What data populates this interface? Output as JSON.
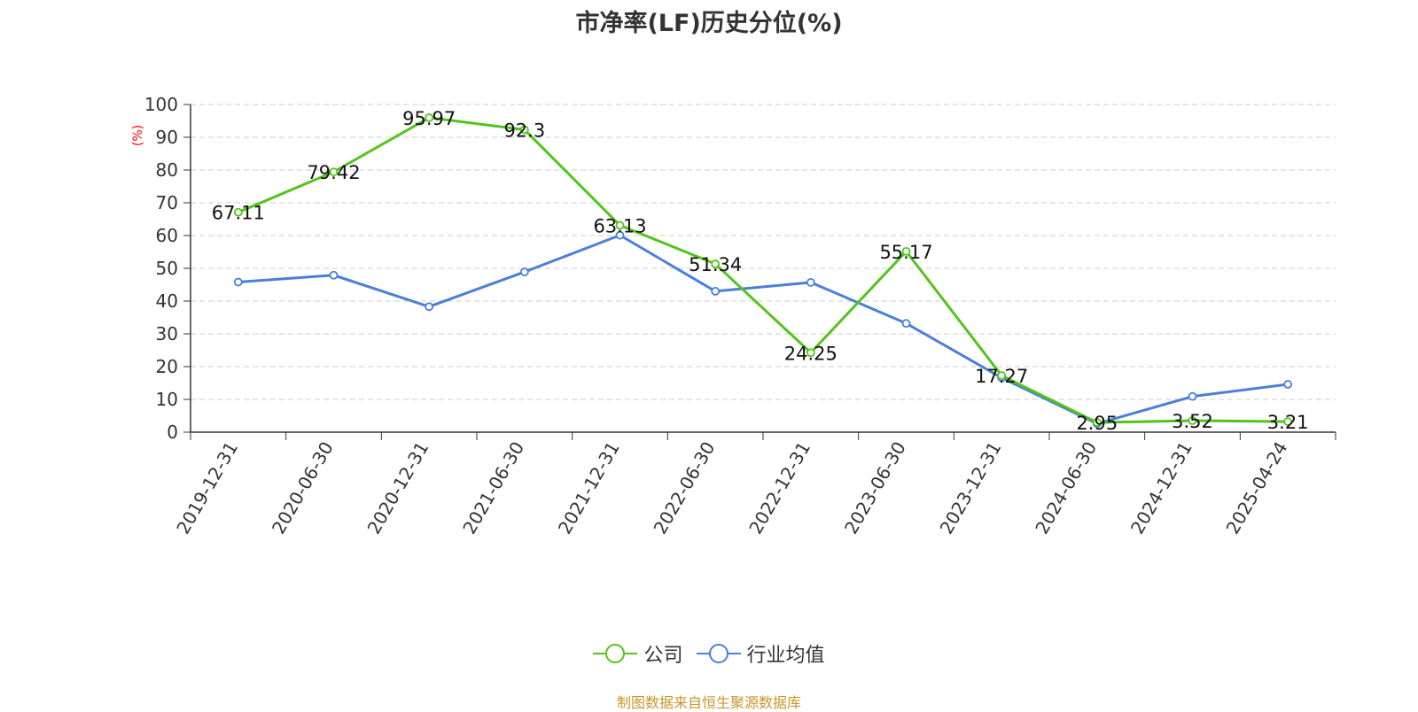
{
  "chart_data": {
    "type": "line",
    "title": "市净率(LF)历史分位(%)",
    "ylabel": "(%)",
    "xlabel": "",
    "ylim": [
      0,
      100
    ],
    "yticks": [
      0,
      10,
      20,
      30,
      40,
      50,
      60,
      70,
      80,
      90,
      100
    ],
    "grid": true,
    "legend_position": "bottom",
    "categories": [
      "2019-12-31",
      "2020-06-30",
      "2020-12-31",
      "2021-06-30",
      "2021-12-31",
      "2022-06-30",
      "2022-12-31",
      "2023-06-30",
      "2023-12-31",
      "2024-06-30",
      "2024-12-31",
      "2025-04-24"
    ],
    "series": [
      {
        "name": "公司",
        "color": "#52c41a",
        "show_labels": true,
        "values": [
          67.11,
          79.42,
          95.97,
          92.3,
          63.13,
          51.34,
          24.25,
          55.17,
          17.27,
          2.95,
          3.52,
          3.21
        ],
        "labels": [
          "67.11",
          "79.42",
          "95.97",
          "92.3",
          "63.13",
          "51.34",
          "24.25",
          "55.17",
          "17.27",
          "2.95",
          "3.52",
          "3.21"
        ]
      },
      {
        "name": "行业均值",
        "color": "#4a7fdb",
        "show_labels": false,
        "values": [
          45.8,
          47.9,
          38.3,
          48.9,
          60.1,
          43.0,
          45.7,
          33.2,
          16.6,
          2.6,
          10.9,
          14.6
        ]
      }
    ]
  },
  "source_note": "制图数据来自恒生聚源数据库"
}
